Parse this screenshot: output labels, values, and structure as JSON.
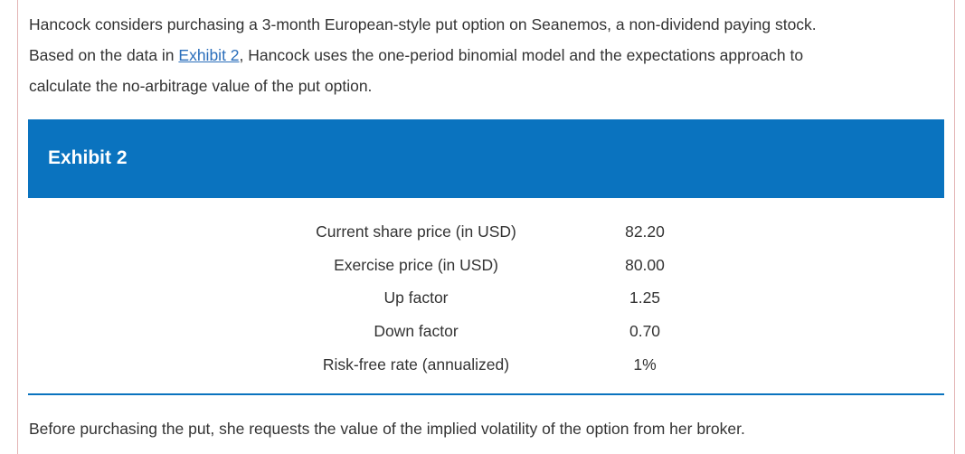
{
  "intro": {
    "line1": "Hancock considers purchasing a 3-month European-style put option on Seanemos, a non-dividend paying stock.",
    "line2_before": "Based on the data in ",
    "line2_link": "Exhibit 2",
    "line2_after": ", Hancock uses the one-period binomial model and the expectations approach to",
    "line3": "calculate the no-arbitrage value of the put option."
  },
  "exhibit": {
    "title": "Exhibit 2",
    "rows": [
      {
        "label": "Current share price (in USD)",
        "value": "82.20"
      },
      {
        "label": "Exercise price (in USD)",
        "value": "80.00"
      },
      {
        "label": "Up factor",
        "value": "1.25"
      },
      {
        "label": "Down factor",
        "value": "0.70"
      },
      {
        "label": "Risk-free rate (annualized)",
        "value": "1%"
      }
    ]
  },
  "outro": "Before purchasing the put, she requests the value of the implied volatility of the option from her broker.",
  "colors": {
    "header_bg": "#0a73bf",
    "link": "#2a6ebb",
    "text": "#333333",
    "frame_border": "#e3b4b4"
  }
}
